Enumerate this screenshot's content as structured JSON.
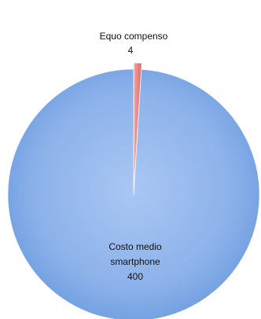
{
  "chart_data": {
    "type": "pie",
    "title": "",
    "slices": [
      {
        "label": "Costo medio smartphone",
        "label_lines": [
          "Costo medio",
          "smartphone"
        ],
        "value": 400,
        "value_label": "400",
        "color": "#8fb4ec"
      },
      {
        "label": "Equo compenso",
        "label_lines": [
          "Equo compenso"
        ],
        "value": 4,
        "value_label": "4",
        "color": "#e88a8a"
      }
    ],
    "legend": "none",
    "data_labels": true
  }
}
